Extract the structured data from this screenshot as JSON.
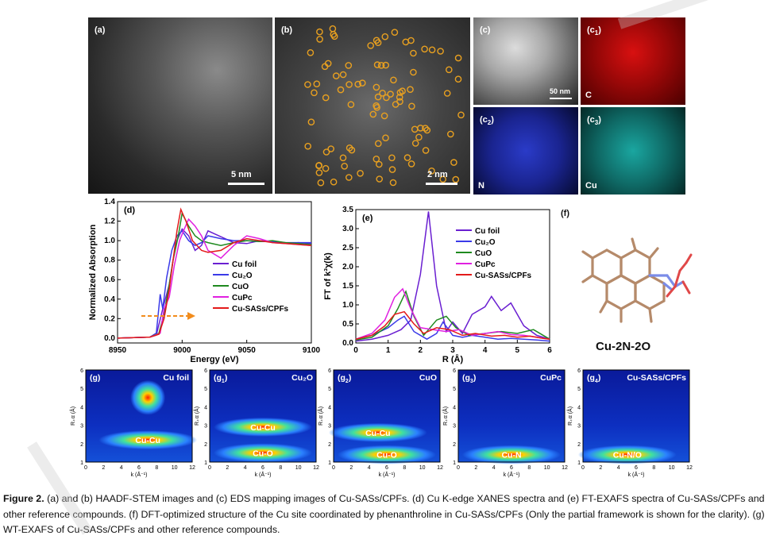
{
  "panels": {
    "a": {
      "label": "(a)",
      "scalebar": "5 nm"
    },
    "b": {
      "label": "(b)",
      "scalebar": "2 nm"
    },
    "c": {
      "label": "(c)",
      "scalebar": "50 nm"
    },
    "c1": {
      "label": "(c1)",
      "label_main": "(c",
      "label_sub": "1",
      "element": "C"
    },
    "c2": {
      "label": "(c2)",
      "label_main": "(c",
      "label_sub": "2",
      "element": "N"
    },
    "c3": {
      "label": "(c3)",
      "label_main": "(c",
      "label_sub": "3",
      "element": "Cu"
    },
    "d": {
      "label": "(d)"
    },
    "e": {
      "label": "(e)"
    },
    "f": {
      "label": "(f)",
      "structure_name": "Cu-2N-2O"
    },
    "g": {
      "label": "(g)",
      "title": "Cu foil",
      "path_label": "Cu-Cu"
    },
    "g1": {
      "label_main": "(g",
      "label_sub": "1",
      "title": "Cu₂O",
      "path_labels": [
        "Cu-Cu",
        "Cu-O"
      ]
    },
    "g2": {
      "label_main": "(g",
      "label_sub": "2",
      "title": "CuO",
      "path_labels": [
        "Cu-Cu",
        "Cu-O"
      ]
    },
    "g3": {
      "label_main": "(g",
      "label_sub": "3",
      "title": "CuPc",
      "path_label": "Cu-N"
    },
    "g4": {
      "label_main": "(g",
      "label_sub": "4",
      "title": "Cu-SASs/CPFs",
      "path_label": "Cu-N/O"
    }
  },
  "colors": {
    "cu_foil": "#6a1fd1",
    "cu2o": "#3a3ae8",
    "cuo": "#1f8a1f",
    "cupc": "#e020e0",
    "cu_sass": "#e31a1a",
    "marker": "#e8a020",
    "arrow": "#f28c1c"
  },
  "chart_data": [
    {
      "id": "d",
      "type": "line",
      "title": "",
      "xlabel": "Energy (eV)",
      "ylabel": "Normalized Absorption",
      "xlim": [
        8950,
        9100
      ],
      "ylim": [
        -0.05,
        1.4
      ],
      "xticks": [
        8950,
        9000,
        9050,
        9100
      ],
      "yticks": [
        0.0,
        0.2,
        0.4,
        0.6,
        0.8,
        1.0,
        1.2,
        1.4
      ],
      "legend_position": "inside right",
      "series": [
        {
          "name": "Cu foil",
          "x": [
            8950,
            8975,
            8980,
            8985,
            8990,
            8993,
            8996,
            9000,
            9005,
            9010,
            9015,
            9020,
            9030,
            9040,
            9050,
            9060,
            9070,
            9080,
            9090,
            9100
          ],
          "y": [
            0.0,
            0.01,
            0.03,
            0.3,
            0.55,
            0.8,
            1.0,
            1.12,
            1.05,
            0.9,
            0.95,
            1.1,
            1.04,
            0.98,
            0.97,
            1.0,
            0.99,
            0.97,
            0.98,
            0.97
          ]
        },
        {
          "name": "Cu₂O",
          "x": [
            8950,
            8975,
            8980,
            8983,
            8985,
            8988,
            8992,
            8996,
            9000,
            9005,
            9010,
            9015,
            9020,
            9030,
            9040,
            9050,
            9060,
            9070,
            9080,
            9090,
            9100
          ],
          "y": [
            0.0,
            0.01,
            0.05,
            0.45,
            0.3,
            0.62,
            0.9,
            1.05,
            1.1,
            1.0,
            0.95,
            0.98,
            1.05,
            1.02,
            1.0,
            1.0,
            0.99,
            0.99,
            0.98,
            0.98,
            0.98
          ]
        },
        {
          "name": "CuO",
          "x": [
            8950,
            8975,
            8982,
            8986,
            8990,
            8993,
            8997,
            9000,
            9005,
            9010,
            9015,
            9020,
            9030,
            9040,
            9050,
            9060,
            9070,
            9080,
            9090,
            9100
          ],
          "y": [
            0.0,
            0.01,
            0.05,
            0.25,
            0.55,
            0.8,
            1.05,
            1.28,
            1.15,
            1.05,
            1.0,
            0.98,
            0.95,
            0.98,
            1.0,
            0.99,
            1.0,
            0.98,
            0.97,
            0.96
          ]
        },
        {
          "name": "CuPc",
          "x": [
            8950,
            8975,
            8983,
            8986,
            8990,
            8994,
            8998,
            9001,
            9005,
            9010,
            9015,
            9020,
            9030,
            9040,
            9050,
            9060,
            9070,
            9080,
            9090,
            9100
          ],
          "y": [
            0.0,
            0.01,
            0.05,
            0.3,
            0.42,
            0.75,
            1.0,
            1.1,
            1.22,
            1.15,
            1.05,
            0.9,
            0.82,
            0.95,
            1.05,
            1.02,
            0.98,
            0.97,
            0.96,
            0.95
          ]
        },
        {
          "name": "Cu-SASs/CPFs",
          "x": [
            8950,
            8975,
            8982,
            8986,
            8990,
            8993,
            8996,
            8999,
            9003,
            9008,
            9015,
            9020,
            9030,
            9040,
            9050,
            9060,
            9070,
            9080,
            9090,
            9100
          ],
          "y": [
            0.0,
            0.01,
            0.04,
            0.2,
            0.5,
            0.8,
            1.1,
            1.32,
            1.2,
            1.0,
            0.9,
            0.88,
            0.9,
            0.98,
            1.02,
            1.0,
            0.98,
            0.97,
            0.96,
            0.95
          ]
        }
      ]
    },
    {
      "id": "e",
      "type": "line",
      "title": "",
      "xlabel": "R (Å)",
      "ylabel": "FT of k³χ(k)",
      "xlim": [
        0,
        6
      ],
      "ylim": [
        0,
        3.5
      ],
      "xticks": [
        0,
        1,
        2,
        3,
        4,
        5,
        6
      ],
      "yticks": [
        0.0,
        0.5,
        1.0,
        1.5,
        2.0,
        2.5,
        3.0,
        3.5
      ],
      "legend_position": "inside right",
      "series": [
        {
          "name": "Cu foil",
          "x": [
            0,
            0.5,
            1.0,
            1.4,
            1.7,
            2.0,
            2.25,
            2.5,
            2.8,
            3.0,
            3.3,
            3.6,
            4.0,
            4.2,
            4.5,
            4.8,
            5.2,
            5.6,
            6.0
          ],
          "y": [
            0.05,
            0.1,
            0.2,
            0.35,
            0.6,
            1.8,
            3.45,
            1.5,
            0.3,
            0.55,
            0.25,
            0.75,
            0.95,
            1.22,
            0.85,
            1.05,
            0.45,
            0.2,
            0.1
          ]
        },
        {
          "name": "Cu₂O",
          "x": [
            0,
            0.5,
            1.0,
            1.3,
            1.5,
            1.8,
            2.2,
            2.5,
            2.7,
            3.0,
            3.3,
            3.6,
            4.0,
            4.4,
            4.8,
            5.2,
            5.6,
            6.0
          ],
          "y": [
            0.1,
            0.2,
            0.4,
            0.6,
            0.7,
            0.3,
            0.1,
            0.25,
            0.55,
            0.2,
            0.15,
            0.2,
            0.15,
            0.1,
            0.12,
            0.1,
            0.08,
            0.05
          ]
        },
        {
          "name": "CuO",
          "x": [
            0,
            0.5,
            1.0,
            1.3,
            1.55,
            1.8,
            2.1,
            2.5,
            2.8,
            3.1,
            3.5,
            4.0,
            4.5,
            5.0,
            5.5,
            6.0
          ],
          "y": [
            0.08,
            0.15,
            0.45,
            0.9,
            1.35,
            0.7,
            0.2,
            0.6,
            0.7,
            0.4,
            0.2,
            0.25,
            0.3,
            0.25,
            0.35,
            0.1
          ]
        },
        {
          "name": "CuPc",
          "x": [
            0,
            0.5,
            0.9,
            1.2,
            1.45,
            1.7,
            2.0,
            2.4,
            2.8,
            3.2,
            3.6,
            4.0,
            4.4,
            4.8,
            5.2,
            5.6,
            6.0
          ],
          "y": [
            0.1,
            0.25,
            0.6,
            1.2,
            1.42,
            0.9,
            0.4,
            0.35,
            0.3,
            0.35,
            0.2,
            0.25,
            0.3,
            0.22,
            0.2,
            0.15,
            0.1
          ]
        },
        {
          "name": "Cu-SASs/CPFs",
          "x": [
            0,
            0.5,
            0.9,
            1.2,
            1.5,
            1.8,
            2.1,
            2.5,
            2.9,
            3.3,
            3.7,
            4.2,
            4.6,
            5.0,
            5.4,
            5.8,
            6.0
          ],
          "y": [
            0.1,
            0.2,
            0.45,
            0.75,
            0.82,
            0.5,
            0.25,
            0.4,
            0.35,
            0.2,
            0.25,
            0.18,
            0.2,
            0.15,
            0.18,
            0.12,
            0.1
          ]
        }
      ]
    },
    {
      "id": "g",
      "type": "heatmap",
      "xlabel": "k (Å⁻¹)",
      "ylabel": "R₊α (Å)",
      "xlim": [
        0,
        12
      ],
      "ylim": [
        1,
        6
      ],
      "xticks_g0": [
        0,
        2,
        4,
        6,
        8,
        10,
        12
      ],
      "xticks_other": [
        0,
        2,
        4,
        6,
        8,
        10,
        12
      ],
      "yticks": [
        1,
        2,
        3,
        4,
        5,
        6
      ],
      "maps": [
        {
          "title": "Cu foil",
          "peaks": [
            {
              "k": 7,
              "R": 2.2,
              "label": "Cu-Cu"
            },
            {
              "k": 7,
              "R": 4.5,
              "label": ""
            }
          ]
        },
        {
          "title": "Cu₂O",
          "peaks": [
            {
              "k": 6,
              "R": 2.9,
              "label": "Cu-Cu"
            },
            {
              "k": 6,
              "R": 1.5,
              "label": "Cu-O"
            }
          ]
        },
        {
          "title": "CuO",
          "peaks": [
            {
              "k": 5,
              "R": 2.6,
              "label": "Cu-Cu"
            },
            {
              "k": 6,
              "R": 1.4,
              "label": "Cu-O"
            }
          ]
        },
        {
          "title": "CuPc",
          "peaks": [
            {
              "k": 6,
              "R": 1.4,
              "label": "Cu-N"
            }
          ]
        },
        {
          "title": "Cu-SASs/CPFs",
          "peaks": [
            {
              "k": 5,
              "R": 1.4,
              "label": "Cu-N/O"
            }
          ]
        }
      ]
    }
  ],
  "caption": {
    "lead": "Figure 2.",
    "text": " (a) and (b) HAADF-STEM images and (c) EDS mapping images of Cu-SASs/CPFs. (d) Cu K-edge XANES spectra and (e) FT-EXAFS spectra of Cu-SASs/CPFs and other reference compounds. (f) DFT-optimized structure of the Cu site coordinated by phenanthroline in Cu-SASs/CPFs (Only the partial framework is shown for the clarity). (g) WT-EXAFS of Cu-SASs/CPFs and other reference compounds."
  }
}
